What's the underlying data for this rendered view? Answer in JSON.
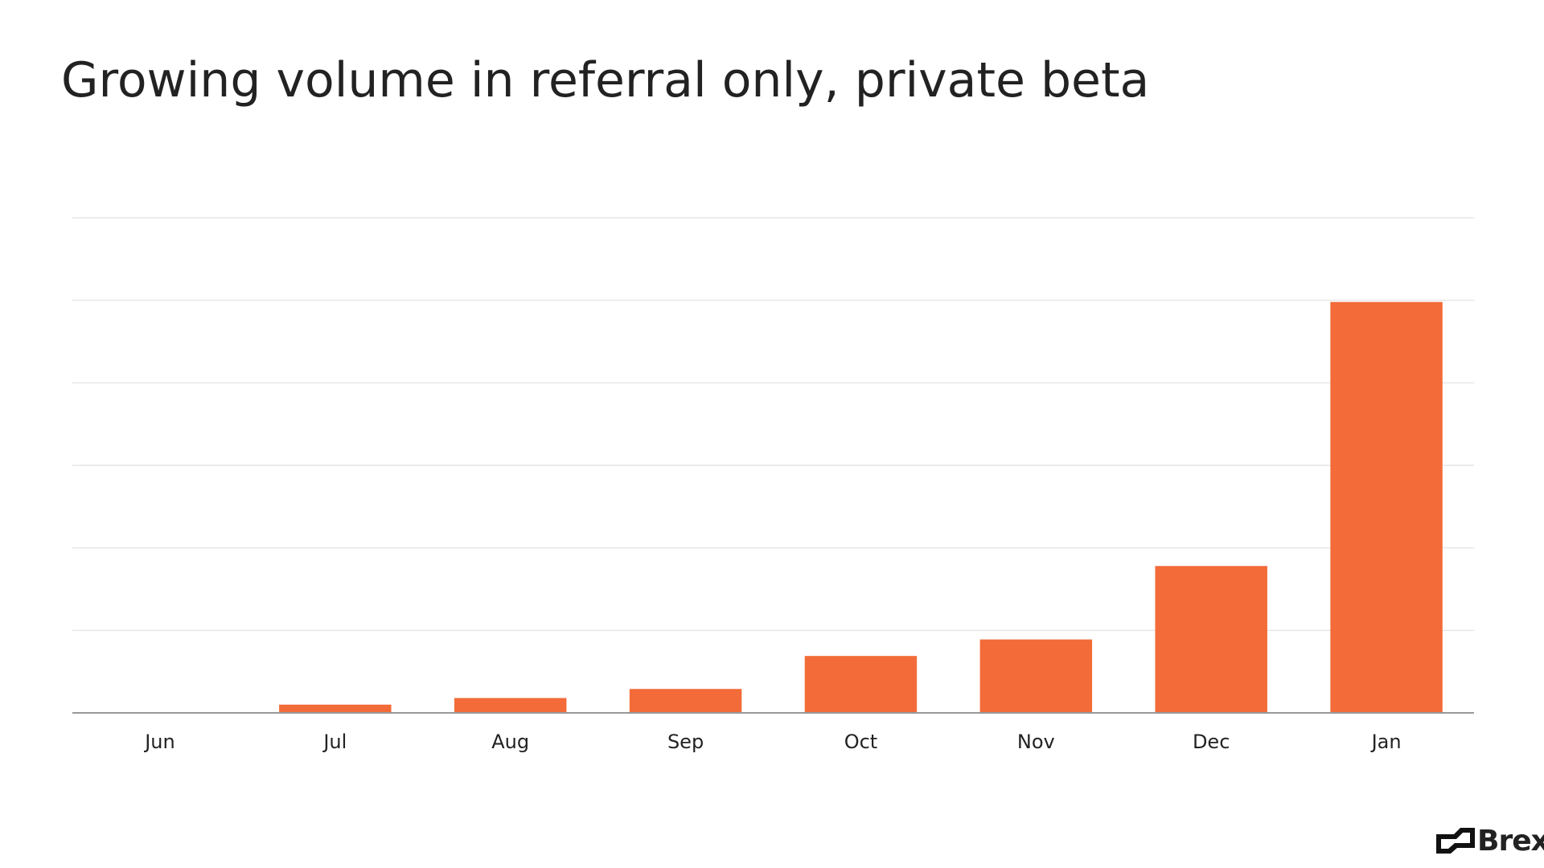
{
  "chart_data": {
    "type": "bar",
    "title": "Growing volume in referral only, private beta",
    "categories": [
      "Jun",
      "Jul",
      "Aug",
      "Sep",
      "Oct",
      "Nov",
      "Dec",
      "Jan"
    ],
    "values": [
      0,
      0.1,
      0.18,
      0.29,
      0.69,
      0.89,
      1.78,
      4.98
    ],
    "color": "#f26b38",
    "ylim": [
      0,
      6
    ],
    "yticks": [
      0,
      1,
      2,
      3,
      4,
      5,
      6
    ],
    "grid": true
  },
  "logo": "Brex"
}
